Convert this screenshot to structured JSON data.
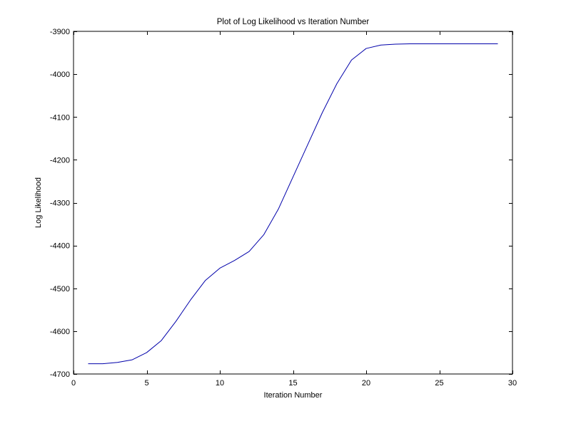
{
  "chart_data": {
    "type": "line",
    "title": "Plot of Log Likelihood vs Iteration Number",
    "xlabel": "Iteration Number",
    "ylabel": "Log Likelihood",
    "xlim": [
      0,
      30
    ],
    "ylim": [
      -4700,
      -3900
    ],
    "xticks": [
      0,
      5,
      10,
      15,
      20,
      25,
      30
    ],
    "yticks": [
      -3900,
      -4000,
      -4100,
      -4200,
      -4300,
      -4400,
      -4500,
      -4600,
      -4700
    ],
    "grid": false,
    "legend": "none",
    "line_color": "#0000aa",
    "series": [
      {
        "x": [
          1,
          2,
          3,
          4,
          5,
          6,
          7,
          8,
          9,
          10,
          11,
          12,
          13,
          14,
          15,
          16,
          17,
          18,
          19,
          20,
          21,
          22,
          23,
          24,
          25,
          26,
          27,
          28,
          29
        ],
        "values": [
          -4676,
          -4676,
          -4673,
          -4667,
          -4650,
          -4622,
          -4577,
          -4527,
          -4482,
          -4453,
          -4435,
          -4414,
          -4375,
          -4315,
          -4240,
          -4165,
          -4090,
          -4022,
          -3967,
          -3940,
          -3932,
          -3930,
          -3929,
          -3929,
          -3929,
          -3929,
          -3929,
          -3929,
          -3929
        ]
      }
    ]
  }
}
